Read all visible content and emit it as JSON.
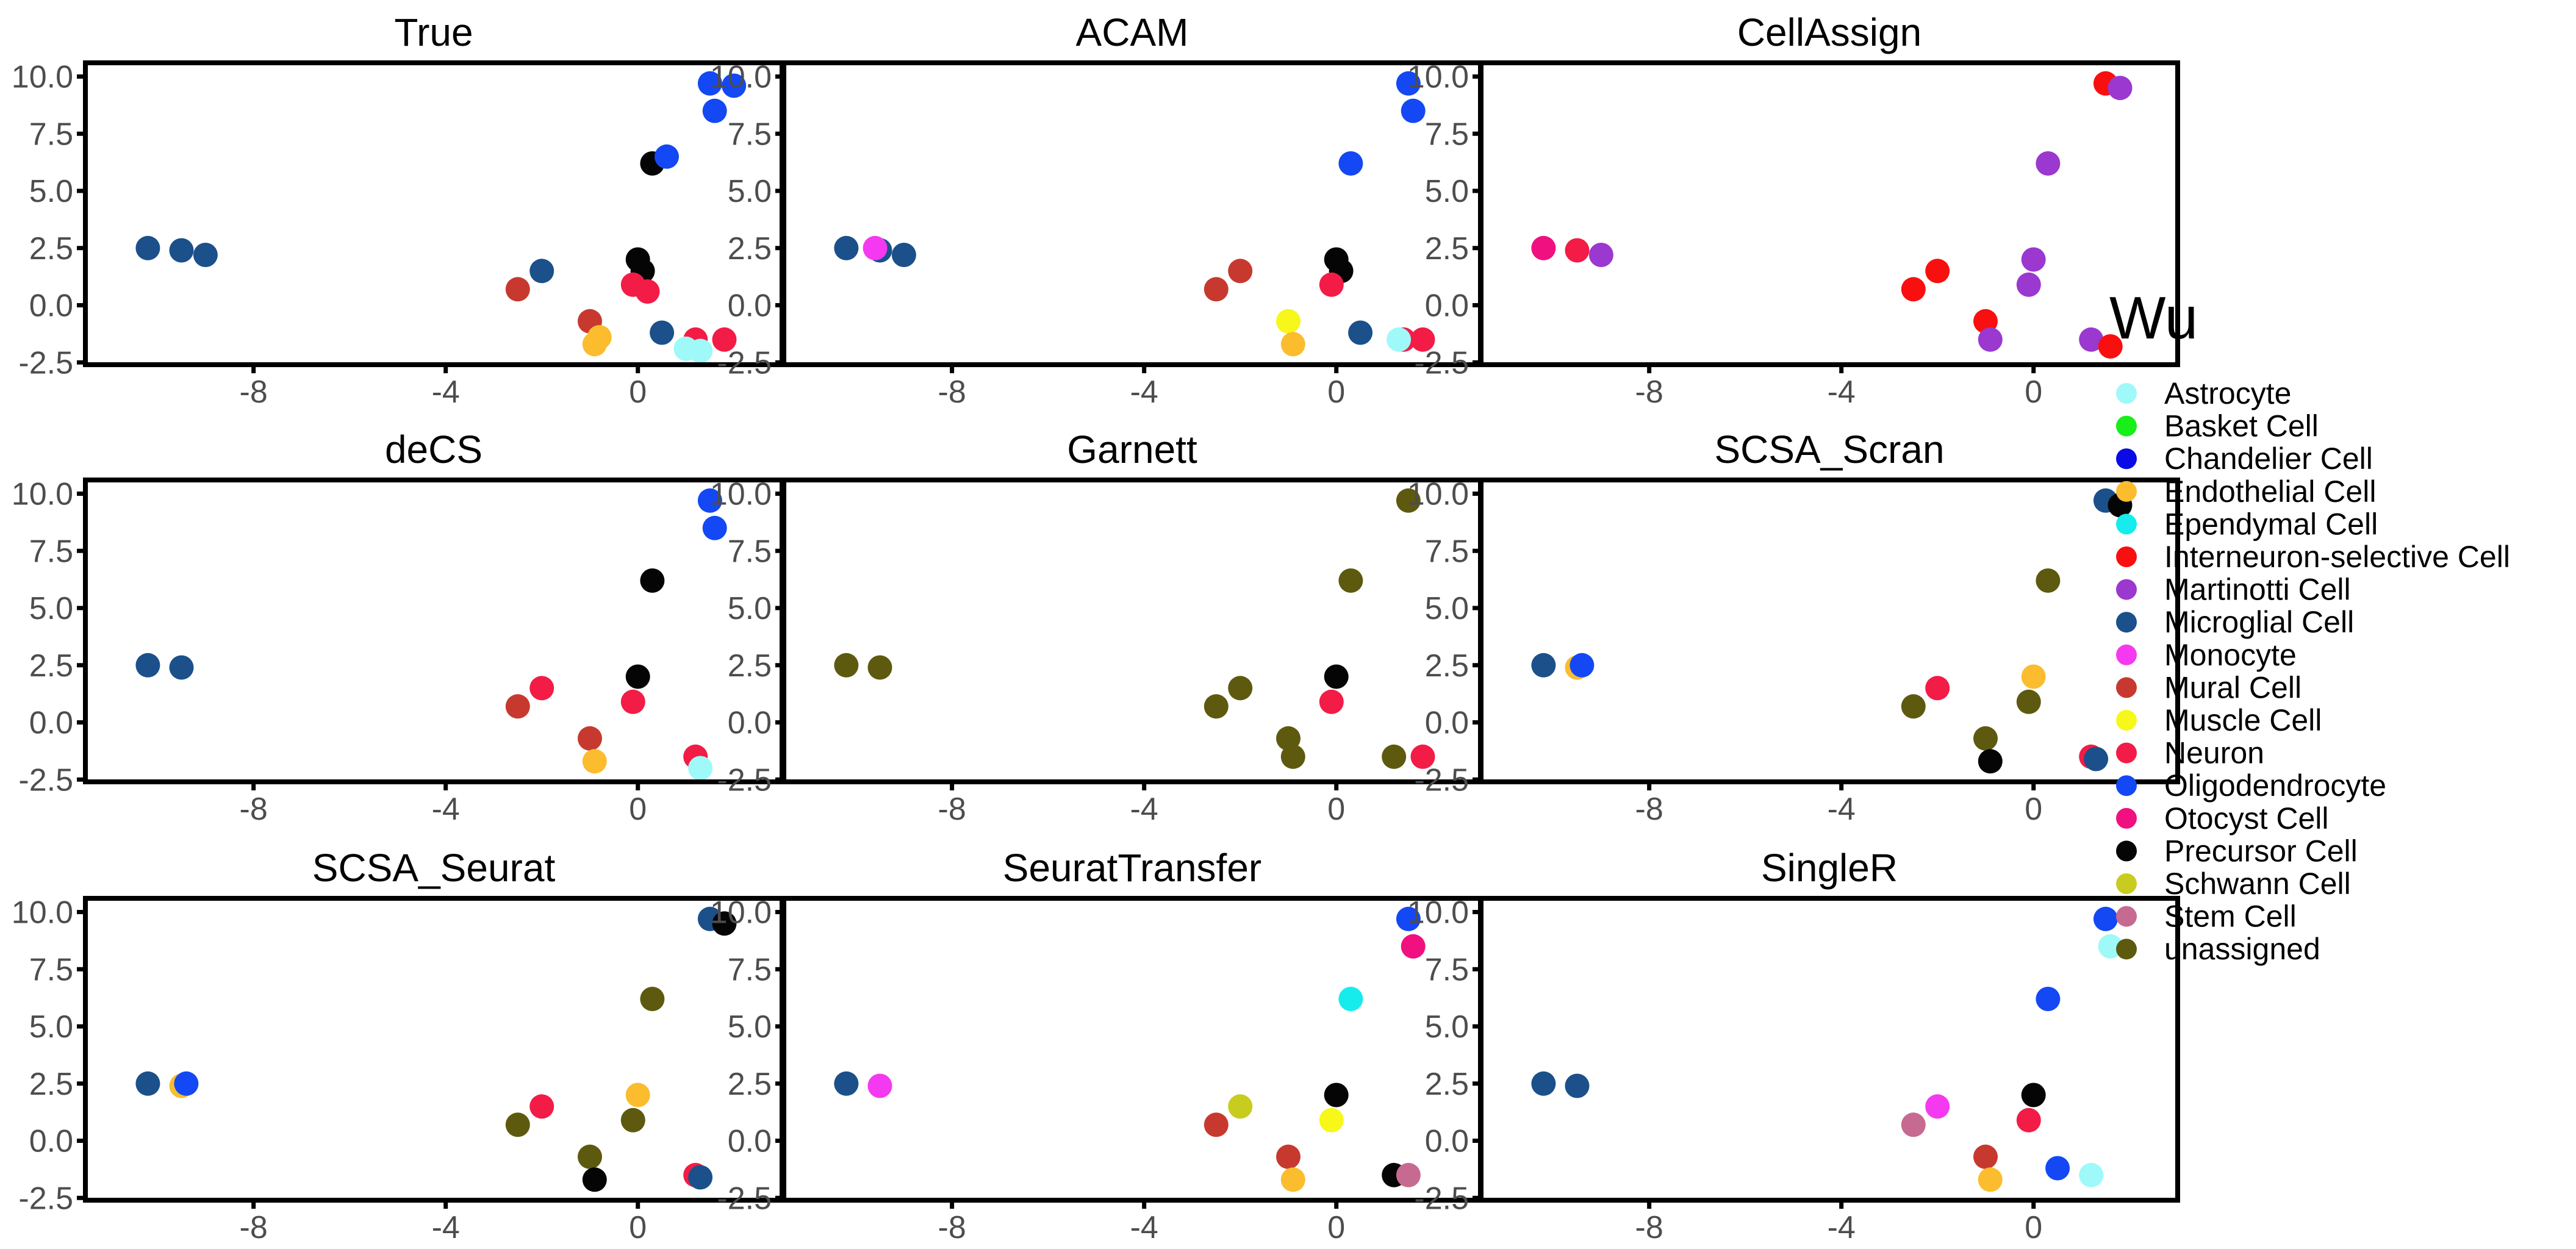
{
  "chart_data": {
    "type": "scatter",
    "layout": "3x3 facet grid of 2D embedding scatter plots",
    "xlim": [
      -11.5,
      3.0
    ],
    "ylim": [
      -2.6,
      10.6
    ],
    "x_ticks": [
      -8,
      -4,
      0
    ],
    "y_ticks": [
      10.0,
      7.5,
      5.0,
      2.5,
      0.0,
      -2.5
    ],
    "x_tick_labels": [
      "-8",
      "-4",
      "0"
    ],
    "y_tick_labels": [
      "10.0",
      "7.5",
      "5.0",
      "2.5",
      "0.0",
      "-2.5"
    ],
    "grid": false,
    "legend": {
      "title": "Wu",
      "position": "right",
      "entries": [
        {
          "label": "Astrocyte",
          "color": "#9ff9f9"
        },
        {
          "label": "Basket Cell",
          "color": "#18ee18"
        },
        {
          "label": "Chandelier Cell",
          "color": "#0a0ae6"
        },
        {
          "label": "Endothelial Cell",
          "color": "#fbbc2e"
        },
        {
          "label": "Ependymal Cell",
          "color": "#16ecec"
        },
        {
          "label": "Interneuron-selective Cell",
          "color": "#f90f0f"
        },
        {
          "label": "Martinotti Cell",
          "color": "#9a38cf"
        },
        {
          "label": "Microglial Cell",
          "color": "#1b508a"
        },
        {
          "label": "Monocyte",
          "color": "#f539f0"
        },
        {
          "label": "Mural Cell",
          "color": "#c7392f"
        },
        {
          "label": "Muscle Cell",
          "color": "#f7f71a"
        },
        {
          "label": "Neuron",
          "color": "#f21c46"
        },
        {
          "label": "Oligodendrocyte",
          "color": "#1448f4"
        },
        {
          "label": "Otocyst Cell",
          "color": "#f0107f"
        },
        {
          "label": "Precursor Cell",
          "color": "#050505"
        },
        {
          "label": "Schwann Cell",
          "color": "#c8cc1e"
        },
        {
          "label": "Stem Cell",
          "color": "#c76a92"
        },
        {
          "label": "unassigned",
          "color": "#5d5a10"
        }
      ]
    },
    "panels": [
      {
        "title": "True",
        "points": [
          {
            "x": -9.5,
            "y": 2.4,
            "label": "Microglial Cell"
          },
          {
            "x": -10.2,
            "y": 2.5,
            "label": "Microglial Cell"
          },
          {
            "x": -9.0,
            "y": 2.2,
            "label": "Microglial Cell"
          },
          {
            "x": -2.0,
            "y": 1.5,
            "label": "Microglial Cell"
          },
          {
            "x": -2.5,
            "y": 0.7,
            "label": "Mural Cell"
          },
          {
            "x": -1.0,
            "y": -0.7,
            "label": "Mural Cell"
          },
          {
            "x": -0.9,
            "y": -1.7,
            "label": "Endothelial Cell"
          },
          {
            "x": -0.8,
            "y": -1.4,
            "label": "Endothelial Cell"
          },
          {
            "x": 0.0,
            "y": 2.0,
            "label": "Precursor Cell"
          },
          {
            "x": 0.1,
            "y": 1.5,
            "label": "Precursor Cell"
          },
          {
            "x": -0.1,
            "y": 0.9,
            "label": "Neuron"
          },
          {
            "x": 0.2,
            "y": 0.6,
            "label": "Neuron"
          },
          {
            "x": 0.5,
            "y": -1.2,
            "label": "Microglial Cell"
          },
          {
            "x": 1.2,
            "y": -1.5,
            "label": "Neuron"
          },
          {
            "x": 1.8,
            "y": -1.5,
            "label": "Neuron"
          },
          {
            "x": 1.0,
            "y": -1.9,
            "label": "Astrocyte"
          },
          {
            "x": 1.3,
            "y": -2.0,
            "label": "Astrocyte"
          },
          {
            "x": 0.3,
            "y": 6.2,
            "label": "Precursor Cell"
          },
          {
            "x": 0.6,
            "y": 6.5,
            "label": "Oligodendrocyte"
          },
          {
            "x": 1.5,
            "y": 9.7,
            "label": "Oligodendrocyte"
          },
          {
            "x": 2.0,
            "y": 9.6,
            "label": "Oligodendrocyte"
          },
          {
            "x": 1.6,
            "y": 8.5,
            "label": "Oligodendrocyte"
          }
        ]
      },
      {
        "title": "ACAM",
        "points": [
          {
            "x": -9.5,
            "y": 2.4,
            "label": "Microglial Cell"
          },
          {
            "x": -10.2,
            "y": 2.5,
            "label": "Microglial Cell"
          },
          {
            "x": -9.0,
            "y": 2.2,
            "label": "Microglial Cell"
          },
          {
            "x": -9.6,
            "y": 2.5,
            "label": "Monocyte"
          },
          {
            "x": -2.0,
            "y": 1.5,
            "label": "Mural Cell"
          },
          {
            "x": -2.5,
            "y": 0.7,
            "label": "Mural Cell"
          },
          {
            "x": -1.0,
            "y": -0.7,
            "label": "Muscle Cell"
          },
          {
            "x": -0.9,
            "y": -1.7,
            "label": "Endothelial Cell"
          },
          {
            "x": 0.0,
            "y": 2.0,
            "label": "Precursor Cell"
          },
          {
            "x": 0.1,
            "y": 1.5,
            "label": "Precursor Cell"
          },
          {
            "x": -0.1,
            "y": 0.9,
            "label": "Neuron"
          },
          {
            "x": 0.5,
            "y": -1.2,
            "label": "Microglial Cell"
          },
          {
            "x": 1.4,
            "y": -1.5,
            "label": "Neuron"
          },
          {
            "x": 1.8,
            "y": -1.5,
            "label": "Neuron"
          },
          {
            "x": 1.3,
            "y": -1.5,
            "label": "Astrocyte"
          },
          {
            "x": 0.3,
            "y": 6.2,
            "label": "Oligodendrocyte"
          },
          {
            "x": 1.5,
            "y": 9.7,
            "label": "Oligodendrocyte"
          },
          {
            "x": 1.6,
            "y": 8.5,
            "label": "Oligodendrocyte"
          }
        ]
      },
      {
        "title": "CellAssign",
        "points": [
          {
            "x": -10.2,
            "y": 2.5,
            "label": "Otocyst Cell"
          },
          {
            "x": -9.5,
            "y": 2.4,
            "label": "Neuron"
          },
          {
            "x": -9.0,
            "y": 2.2,
            "label": "Martinotti Cell"
          },
          {
            "x": -2.0,
            "y": 1.5,
            "label": "Interneuron-selective Cell"
          },
          {
            "x": -2.5,
            "y": 0.7,
            "label": "Interneuron-selective Cell"
          },
          {
            "x": -1.0,
            "y": -0.7,
            "label": "Interneuron-selective Cell"
          },
          {
            "x": -0.9,
            "y": -1.5,
            "label": "Martinotti Cell"
          },
          {
            "x": 0.0,
            "y": 2.0,
            "label": "Martinotti Cell"
          },
          {
            "x": -0.1,
            "y": 0.9,
            "label": "Martinotti Cell"
          },
          {
            "x": 1.2,
            "y": -1.5,
            "label": "Martinotti Cell"
          },
          {
            "x": 1.6,
            "y": -1.8,
            "label": "Interneuron-selective Cell"
          },
          {
            "x": 0.3,
            "y": 6.2,
            "label": "Martinotti Cell"
          },
          {
            "x": 1.5,
            "y": 9.7,
            "label": "Interneuron-selective Cell"
          },
          {
            "x": 1.8,
            "y": 9.5,
            "label": "Martinotti Cell"
          }
        ]
      },
      {
        "title": "deCS",
        "points": [
          {
            "x": -9.5,
            "y": 2.4,
            "label": "Microglial Cell"
          },
          {
            "x": -10.2,
            "y": 2.5,
            "label": "Microglial Cell"
          },
          {
            "x": -2.0,
            "y": 1.5,
            "label": "Neuron"
          },
          {
            "x": -2.5,
            "y": 0.7,
            "label": "Mural Cell"
          },
          {
            "x": -1.0,
            "y": -0.7,
            "label": "Mural Cell"
          },
          {
            "x": -0.9,
            "y": -1.7,
            "label": "Endothelial Cell"
          },
          {
            "x": 0.0,
            "y": 2.0,
            "label": "Precursor Cell"
          },
          {
            "x": -0.1,
            "y": 0.9,
            "label": "Neuron"
          },
          {
            "x": 1.2,
            "y": -1.5,
            "label": "Neuron"
          },
          {
            "x": 1.3,
            "y": -2.0,
            "label": "Astrocyte"
          },
          {
            "x": 0.3,
            "y": 6.2,
            "label": "Precursor Cell"
          },
          {
            "x": 1.5,
            "y": 9.7,
            "label": "Oligodendrocyte"
          },
          {
            "x": 1.6,
            "y": 8.5,
            "label": "Oligodendrocyte"
          }
        ]
      },
      {
        "title": "Garnett",
        "points": [
          {
            "x": -9.5,
            "y": 2.4,
            "label": "unassigned"
          },
          {
            "x": -10.2,
            "y": 2.5,
            "label": "unassigned"
          },
          {
            "x": -2.0,
            "y": 1.5,
            "label": "unassigned"
          },
          {
            "x": -2.5,
            "y": 0.7,
            "label": "unassigned"
          },
          {
            "x": -1.0,
            "y": -0.7,
            "label": "unassigned"
          },
          {
            "x": -0.9,
            "y": -1.5,
            "label": "unassigned"
          },
          {
            "x": 0.0,
            "y": 2.0,
            "label": "Precursor Cell"
          },
          {
            "x": -0.1,
            "y": 0.9,
            "label": "Neuron"
          },
          {
            "x": 1.2,
            "y": -1.5,
            "label": "unassigned"
          },
          {
            "x": 1.8,
            "y": -1.5,
            "label": "Neuron"
          },
          {
            "x": 0.3,
            "y": 6.2,
            "label": "unassigned"
          },
          {
            "x": 1.5,
            "y": 9.7,
            "label": "unassigned"
          }
        ]
      },
      {
        "title": "SCSA_Scran",
        "points": [
          {
            "x": -9.5,
            "y": 2.4,
            "label": "Endothelial Cell"
          },
          {
            "x": -10.2,
            "y": 2.5,
            "label": "Microglial Cell"
          },
          {
            "x": -9.4,
            "y": 2.5,
            "label": "Oligodendrocyte"
          },
          {
            "x": -2.0,
            "y": 1.5,
            "label": "Neuron"
          },
          {
            "x": -2.5,
            "y": 0.7,
            "label": "unassigned"
          },
          {
            "x": -1.0,
            "y": -0.7,
            "label": "unassigned"
          },
          {
            "x": -0.9,
            "y": -1.7,
            "label": "Precursor Cell"
          },
          {
            "x": 0.0,
            "y": 2.0,
            "label": "Endothelial Cell"
          },
          {
            "x": -0.1,
            "y": 0.9,
            "label": "unassigned"
          },
          {
            "x": 1.2,
            "y": -1.5,
            "label": "Neuron"
          },
          {
            "x": 1.3,
            "y": -1.6,
            "label": "Microglial Cell"
          },
          {
            "x": 0.3,
            "y": 6.2,
            "label": "unassigned"
          },
          {
            "x": 1.5,
            "y": 9.7,
            "label": "Microglial Cell"
          },
          {
            "x": 1.8,
            "y": 9.5,
            "label": "Precursor Cell"
          }
        ]
      },
      {
        "title": "SCSA_Seurat",
        "points": [
          {
            "x": -9.5,
            "y": 2.4,
            "label": "Endothelial Cell"
          },
          {
            "x": -10.2,
            "y": 2.5,
            "label": "Microglial Cell"
          },
          {
            "x": -9.4,
            "y": 2.5,
            "label": "Oligodendrocyte"
          },
          {
            "x": -2.0,
            "y": 1.5,
            "label": "Neuron"
          },
          {
            "x": -2.5,
            "y": 0.7,
            "label": "unassigned"
          },
          {
            "x": -1.0,
            "y": -0.7,
            "label": "unassigned"
          },
          {
            "x": -0.9,
            "y": -1.7,
            "label": "Precursor Cell"
          },
          {
            "x": 0.0,
            "y": 2.0,
            "label": "Endothelial Cell"
          },
          {
            "x": -0.1,
            "y": 0.9,
            "label": "unassigned"
          },
          {
            "x": 1.2,
            "y": -1.5,
            "label": "Neuron"
          },
          {
            "x": 1.3,
            "y": -1.6,
            "label": "Microglial Cell"
          },
          {
            "x": 0.3,
            "y": 6.2,
            "label": "unassigned"
          },
          {
            "x": 1.5,
            "y": 9.7,
            "label": "Microglial Cell"
          },
          {
            "x": 1.8,
            "y": 9.5,
            "label": "Precursor Cell"
          }
        ]
      },
      {
        "title": "SeuratTransfer",
        "points": [
          {
            "x": -9.5,
            "y": 2.4,
            "label": "Monocyte"
          },
          {
            "x": -10.2,
            "y": 2.5,
            "label": "Microglial Cell"
          },
          {
            "x": -2.0,
            "y": 1.5,
            "label": "Schwann Cell"
          },
          {
            "x": -2.5,
            "y": 0.7,
            "label": "Mural Cell"
          },
          {
            "x": -1.0,
            "y": -0.7,
            "label": "Mural Cell"
          },
          {
            "x": -0.9,
            "y": -1.7,
            "label": "Endothelial Cell"
          },
          {
            "x": 0.0,
            "y": 2.0,
            "label": "Precursor Cell"
          },
          {
            "x": -0.1,
            "y": 0.9,
            "label": "Muscle Cell"
          },
          {
            "x": 1.2,
            "y": -1.5,
            "label": "Precursor Cell"
          },
          {
            "x": 1.5,
            "y": -1.5,
            "label": "Stem Cell"
          },
          {
            "x": 0.3,
            "y": 6.2,
            "label": "Ependymal Cell"
          },
          {
            "x": 1.5,
            "y": 9.7,
            "label": "Oligodendrocyte"
          },
          {
            "x": 1.6,
            "y": 8.5,
            "label": "Otocyst Cell"
          }
        ]
      },
      {
        "title": "SingleR",
        "points": [
          {
            "x": -9.5,
            "y": 2.4,
            "label": "Microglial Cell"
          },
          {
            "x": -10.2,
            "y": 2.5,
            "label": "Microglial Cell"
          },
          {
            "x": -2.0,
            "y": 1.5,
            "label": "Monocyte"
          },
          {
            "x": -2.5,
            "y": 0.7,
            "label": "Stem Cell"
          },
          {
            "x": -1.0,
            "y": -0.7,
            "label": "Mural Cell"
          },
          {
            "x": -0.9,
            "y": -1.7,
            "label": "Endothelial Cell"
          },
          {
            "x": 0.0,
            "y": 2.0,
            "label": "Precursor Cell"
          },
          {
            "x": -0.1,
            "y": 0.9,
            "label": "Neuron"
          },
          {
            "x": 1.2,
            "y": -1.5,
            "label": "Astrocyte"
          },
          {
            "x": 0.5,
            "y": -1.2,
            "label": "Oligodendrocyte"
          },
          {
            "x": 0.3,
            "y": 6.2,
            "label": "Oligodendrocyte"
          },
          {
            "x": 1.5,
            "y": 9.7,
            "label": "Oligodendrocyte"
          },
          {
            "x": 1.6,
            "y": 8.5,
            "label": "Astrocyte"
          }
        ]
      }
    ]
  }
}
